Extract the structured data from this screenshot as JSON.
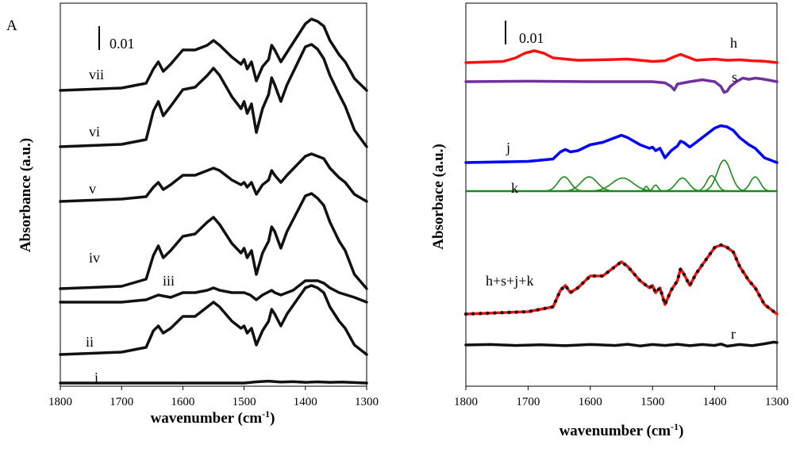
{
  "chart_data": [
    {
      "type": "line",
      "panel_label": "A",
      "xlabel_main": "wavenumber (cm",
      "xlabel_sup": "-1",
      "xlabel_end": ")",
      "ylabel": "Absorbance (a.u.)",
      "xlim": [
        1800,
        1300
      ],
      "x_ticks": [
        "1800",
        "1700",
        "1600",
        "1500",
        "1400",
        "1300"
      ],
      "scale_bar_label": "0.01",
      "series": [
        {
          "name": "vii",
          "color": "#111111",
          "x": [
            1800,
            1700,
            1660,
            1648,
            1640,
            1632,
            1620,
            1600,
            1580,
            1560,
            1550,
            1540,
            1520,
            1505,
            1500,
            1495,
            1488,
            1480,
            1470,
            1460,
            1455,
            1450,
            1440,
            1430,
            1400,
            1390,
            1380,
            1370,
            1360,
            1345,
            1335,
            1320,
            1300
          ],
          "y": [
            0.0,
            0.001,
            0.003,
            0.009,
            0.012,
            0.008,
            0.011,
            0.017,
            0.017,
            0.019,
            0.021,
            0.019,
            0.014,
            0.011,
            0.013,
            0.009,
            0.012,
            0.004,
            0.01,
            0.013,
            0.019,
            0.017,
            0.012,
            0.016,
            0.028,
            0.03,
            0.029,
            0.027,
            0.021,
            0.015,
            0.012,
            0.005,
            0.0
          ]
        },
        {
          "name": "vi",
          "color": "#111111",
          "x": [
            1800,
            1700,
            1660,
            1648,
            1640,
            1632,
            1620,
            1600,
            1580,
            1560,
            1550,
            1540,
            1520,
            1505,
            1500,
            1495,
            1488,
            1480,
            1470,
            1460,
            1455,
            1450,
            1440,
            1430,
            1400,
            1390,
            1380,
            1370,
            1360,
            1345,
            1335,
            1320,
            1300
          ],
          "y": [
            0.0,
            0.001,
            0.003,
            0.015,
            0.019,
            0.013,
            0.017,
            0.024,
            0.025,
            0.03,
            0.033,
            0.03,
            0.021,
            0.016,
            0.019,
            0.014,
            0.018,
            0.006,
            0.016,
            0.022,
            0.029,
            0.026,
            0.019,
            0.026,
            0.042,
            0.043,
            0.041,
            0.037,
            0.03,
            0.022,
            0.017,
            0.007,
            0.0
          ]
        },
        {
          "name": "v",
          "color": "#111111",
          "x": [
            1800,
            1700,
            1660,
            1648,
            1640,
            1632,
            1620,
            1600,
            1580,
            1560,
            1550,
            1540,
            1520,
            1505,
            1500,
            1495,
            1488,
            1480,
            1470,
            1460,
            1455,
            1450,
            1440,
            1430,
            1400,
            1390,
            1380,
            1370,
            1360,
            1345,
            1335,
            1320,
            1300
          ],
          "y": [
            0.0,
            0.001,
            0.002,
            0.006,
            0.008,
            0.005,
            0.007,
            0.011,
            0.011,
            0.013,
            0.014,
            0.013,
            0.009,
            0.007,
            0.008,
            0.006,
            0.008,
            0.003,
            0.007,
            0.009,
            0.013,
            0.011,
            0.008,
            0.011,
            0.019,
            0.02,
            0.019,
            0.018,
            0.014,
            0.01,
            0.008,
            0.003,
            0.0
          ]
        },
        {
          "name": "iv",
          "color": "#111111",
          "x": [
            1800,
            1700,
            1660,
            1648,
            1640,
            1632,
            1620,
            1600,
            1580,
            1560,
            1550,
            1540,
            1520,
            1505,
            1500,
            1495,
            1488,
            1480,
            1470,
            1460,
            1455,
            1450,
            1440,
            1430,
            1400,
            1390,
            1380,
            1370,
            1360,
            1345,
            1335,
            1320,
            1300
          ],
          "y": [
            0.0,
            0.001,
            0.004,
            0.014,
            0.018,
            0.013,
            0.016,
            0.022,
            0.023,
            0.028,
            0.03,
            0.027,
            0.019,
            0.015,
            0.017,
            0.013,
            0.016,
            0.006,
            0.015,
            0.02,
            0.026,
            0.024,
            0.017,
            0.024,
            0.039,
            0.04,
            0.038,
            0.035,
            0.028,
            0.02,
            0.016,
            0.006,
            0.0
          ]
        },
        {
          "name": "iii",
          "color": "#111111",
          "x": [
            1800,
            1700,
            1660,
            1640,
            1620,
            1600,
            1580,
            1560,
            1550,
            1540,
            1520,
            1500,
            1490,
            1480,
            1470,
            1455,
            1450,
            1440,
            1420,
            1400,
            1390,
            1380,
            1370,
            1360,
            1345,
            1320,
            1300
          ],
          "y": [
            0.0,
            0.0,
            0.001,
            0.003,
            0.002,
            0.004,
            0.004,
            0.005,
            0.006,
            0.005,
            0.004,
            0.004,
            0.003,
            0.001,
            0.003,
            0.005,
            0.004,
            0.003,
            0.005,
            0.009,
            0.009,
            0.009,
            0.008,
            0.006,
            0.004,
            0.002,
            0.0
          ]
        },
        {
          "name": "ii",
          "color": "#111111",
          "x": [
            1800,
            1700,
            1660,
            1648,
            1640,
            1632,
            1620,
            1600,
            1580,
            1560,
            1550,
            1540,
            1520,
            1505,
            1500,
            1495,
            1488,
            1480,
            1470,
            1460,
            1455,
            1450,
            1440,
            1430,
            1400,
            1390,
            1380,
            1370,
            1360,
            1345,
            1335,
            1320,
            1300
          ],
          "y": [
            0.0,
            0.001,
            0.003,
            0.01,
            0.012,
            0.009,
            0.011,
            0.016,
            0.016,
            0.02,
            0.022,
            0.02,
            0.014,
            0.011,
            0.012,
            0.009,
            0.011,
            0.004,
            0.01,
            0.014,
            0.019,
            0.017,
            0.012,
            0.017,
            0.028,
            0.029,
            0.028,
            0.026,
            0.02,
            0.014,
            0.011,
            0.004,
            0.0
          ]
        },
        {
          "name": "i",
          "color": "#111111",
          "x": [
            1800,
            1700,
            1600,
            1500,
            1480,
            1460,
            1440,
            1420,
            1400,
            1380,
            1360,
            1340,
            1300
          ],
          "y": [
            0.0,
            0.0,
            0.0,
            0.0,
            0.0005,
            0.0008,
            0.0004,
            0.0006,
            0.0003,
            0.0005,
            0.0003,
            0.0004,
            0.0
          ]
        }
      ]
    },
    {
      "type": "line",
      "xlabel_main": "wavenumber (cm",
      "xlabel_sup": "-1",
      "xlabel_end": ")",
      "ylabel": "Absorbace (a.u.)",
      "xlim": [
        1800,
        1300
      ],
      "x_ticks": [
        "1800",
        "1700",
        "1600",
        "1500",
        "1400",
        "1300"
      ],
      "scale_bar_label": "0.01",
      "series": [
        {
          "name": "h",
          "color": "#ff1010",
          "x": [
            1800,
            1740,
            1720,
            1705,
            1690,
            1675,
            1660,
            1620,
            1580,
            1540,
            1500,
            1480,
            1465,
            1455,
            1445,
            1430,
            1400,
            1380,
            1360,
            1340,
            1320,
            1300
          ],
          "y": [
            0.0,
            0.0005,
            0.002,
            0.004,
            0.005,
            0.004,
            0.002,
            0.001,
            0.0012,
            0.0015,
            0.0005,
            0.0008,
            0.0025,
            0.0035,
            0.0025,
            0.001,
            0.0015,
            0.001,
            0.0012,
            0.0008,
            0.0006,
            0.0
          ]
        },
        {
          "name": "s",
          "color": "#7030a0",
          "x": [
            1800,
            1700,
            1600,
            1500,
            1480,
            1470,
            1465,
            1460,
            1440,
            1420,
            1400,
            1390,
            1385,
            1380,
            1375,
            1365,
            1355,
            1345,
            1335,
            1325,
            1310,
            1300
          ],
          "y": [
            0.0,
            0.0002,
            0.0,
            0.0,
            -0.0005,
            -0.002,
            -0.0035,
            -0.001,
            0.0,
            0.0008,
            0.0,
            -0.002,
            -0.0045,
            -0.004,
            -0.002,
            0.0,
            0.0015,
            0.001,
            0.0015,
            0.0012,
            0.0005,
            0.0
          ]
        },
        {
          "name": "j",
          "color": "#0000ff",
          "x": [
            1800,
            1700,
            1660,
            1648,
            1640,
            1632,
            1620,
            1600,
            1580,
            1560,
            1550,
            1540,
            1520,
            1505,
            1500,
            1495,
            1488,
            1480,
            1470,
            1460,
            1455,
            1450,
            1440,
            1430,
            1400,
            1390,
            1380,
            1370,
            1360,
            1345,
            1335,
            1320,
            1300
          ],
          "y": [
            0.0,
            0.0005,
            0.0015,
            0.0045,
            0.0055,
            0.0045,
            0.005,
            0.0075,
            0.0085,
            0.0105,
            0.0115,
            0.0105,
            0.0075,
            0.006,
            0.0065,
            0.005,
            0.006,
            0.002,
            0.005,
            0.007,
            0.009,
            0.0085,
            0.0065,
            0.0085,
            0.0145,
            0.0155,
            0.015,
            0.0135,
            0.0105,
            0.0075,
            0.006,
            0.002,
            0.0
          ]
        },
        {
          "name": "k",
          "color": "#1a8a1a",
          "peaks": [
            {
              "center": 1642,
              "height": 0.006,
              "width": 10
            },
            {
              "center": 1602,
              "height": 0.006,
              "width": 13
            },
            {
              "center": 1548,
              "height": 0.0055,
              "width": 17
            },
            {
              "center": 1510,
              "height": 0.002,
              "width": 3
            },
            {
              "center": 1495,
              "height": 0.0025,
              "width": 4
            },
            {
              "center": 1452,
              "height": 0.0055,
              "width": 10
            },
            {
              "center": 1405,
              "height": 0.0065,
              "width": 8
            },
            {
              "center": 1385,
              "height": 0.013,
              "width": 11
            },
            {
              "center": 1335,
              "height": 0.006,
              "width": 8
            }
          ]
        },
        {
          "name": "h+s+j+k",
          "color": "#ff1010",
          "x": [
            1800,
            1700,
            1660,
            1648,
            1640,
            1632,
            1620,
            1600,
            1580,
            1560,
            1550,
            1540,
            1520,
            1505,
            1500,
            1495,
            1488,
            1480,
            1470,
            1460,
            1455,
            1450,
            1440,
            1430,
            1400,
            1390,
            1380,
            1370,
            1360,
            1345,
            1335,
            1320,
            1300
          ],
          "y": [
            0.0,
            0.001,
            0.003,
            0.01,
            0.012,
            0.009,
            0.011,
            0.016,
            0.016,
            0.02,
            0.022,
            0.02,
            0.014,
            0.011,
            0.012,
            0.009,
            0.011,
            0.004,
            0.01,
            0.014,
            0.019,
            0.017,
            0.012,
            0.017,
            0.028,
            0.029,
            0.028,
            0.026,
            0.02,
            0.014,
            0.011,
            0.004,
            0.0
          ]
        },
        {
          "name": "r",
          "color": "#111111",
          "x": [
            1800,
            1760,
            1720,
            1680,
            1640,
            1600,
            1560,
            1540,
            1520,
            1500,
            1480,
            1460,
            1440,
            1420,
            1400,
            1390,
            1380,
            1360,
            1340,
            1320,
            1305,
            1300
          ],
          "y": [
            0.0,
            0.0002,
            -0.0002,
            0.0001,
            -0.0003,
            0.0002,
            -0.0002,
            0.0003,
            -0.0004,
            0.0002,
            -0.0002,
            0.0003,
            -0.0003,
            0.0002,
            -0.0002,
            0.0004,
            -0.0005,
            0.0002,
            -0.0003,
            0.0005,
            0.0012,
            0.001
          ]
        }
      ]
    }
  ]
}
